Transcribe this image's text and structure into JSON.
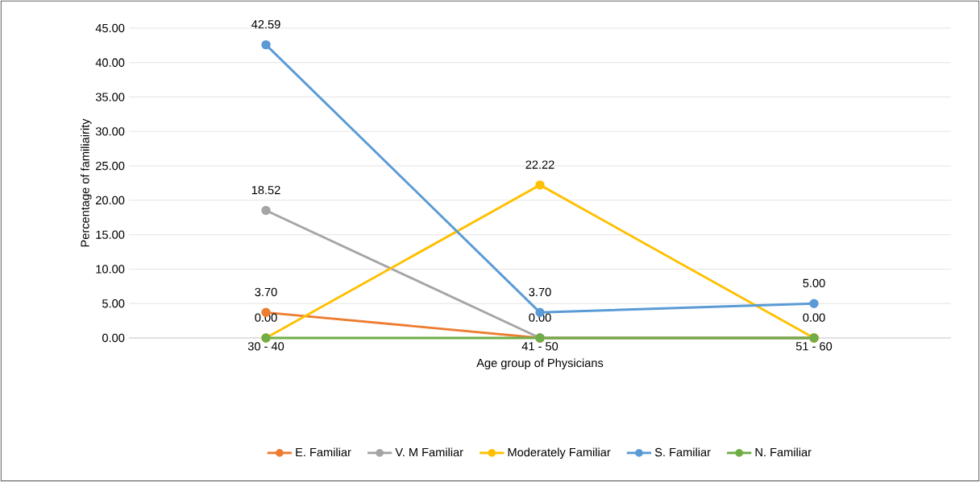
{
  "chart_data": {
    "type": "line",
    "xlabel": "Age group of Physicians",
    "ylabel": "Percentage of familiairity",
    "categories": [
      "30 - 40",
      "41 - 50",
      "51 - 60"
    ],
    "series": [
      {
        "name": "E. Familiar",
        "color": "#ed7d31",
        "values": [
          3.7,
          0.0,
          0.0
        ],
        "value_labels": [
          "3.70",
          null,
          null
        ]
      },
      {
        "name": "V. M Familiar",
        "color": "#a5a5a5",
        "values": [
          18.52,
          0.0,
          0.0
        ],
        "value_labels": [
          "18.52",
          null,
          null
        ]
      },
      {
        "name": "Moderately Familiar",
        "color": "#ffc000",
        "values": [
          0.0,
          22.22,
          0.0
        ],
        "value_labels": [
          null,
          "22.22",
          null
        ]
      },
      {
        "name": "S. Familiar",
        "color": "#5b9bd5",
        "values": [
          42.59,
          3.7,
          5.0
        ],
        "value_labels": [
          "42.59",
          "3.70",
          "5.00"
        ]
      },
      {
        "name": "N. Familiar",
        "color": "#70ad47",
        "values": [
          0.0,
          0.0,
          0.0
        ],
        "value_labels": [
          "0.00",
          "0.00",
          "0.00"
        ]
      }
    ],
    "ylim": [
      0,
      45
    ],
    "yticks": [
      {
        "value": 0,
        "label": "0.00"
      },
      {
        "value": 5,
        "label": "5.00"
      },
      {
        "value": 10,
        "label": "10.00"
      },
      {
        "value": 15,
        "label": "15.00"
      },
      {
        "value": 20,
        "label": "20.00"
      },
      {
        "value": 25,
        "label": "25.00"
      },
      {
        "value": 30,
        "label": "30.00"
      },
      {
        "value": 35,
        "label": "35.00"
      },
      {
        "value": 40,
        "label": "40.00"
      },
      {
        "value": 45,
        "label": "45.00"
      }
    ],
    "grid": "y",
    "legend": "bottom",
    "marker": "circle",
    "line_style": "solid"
  }
}
